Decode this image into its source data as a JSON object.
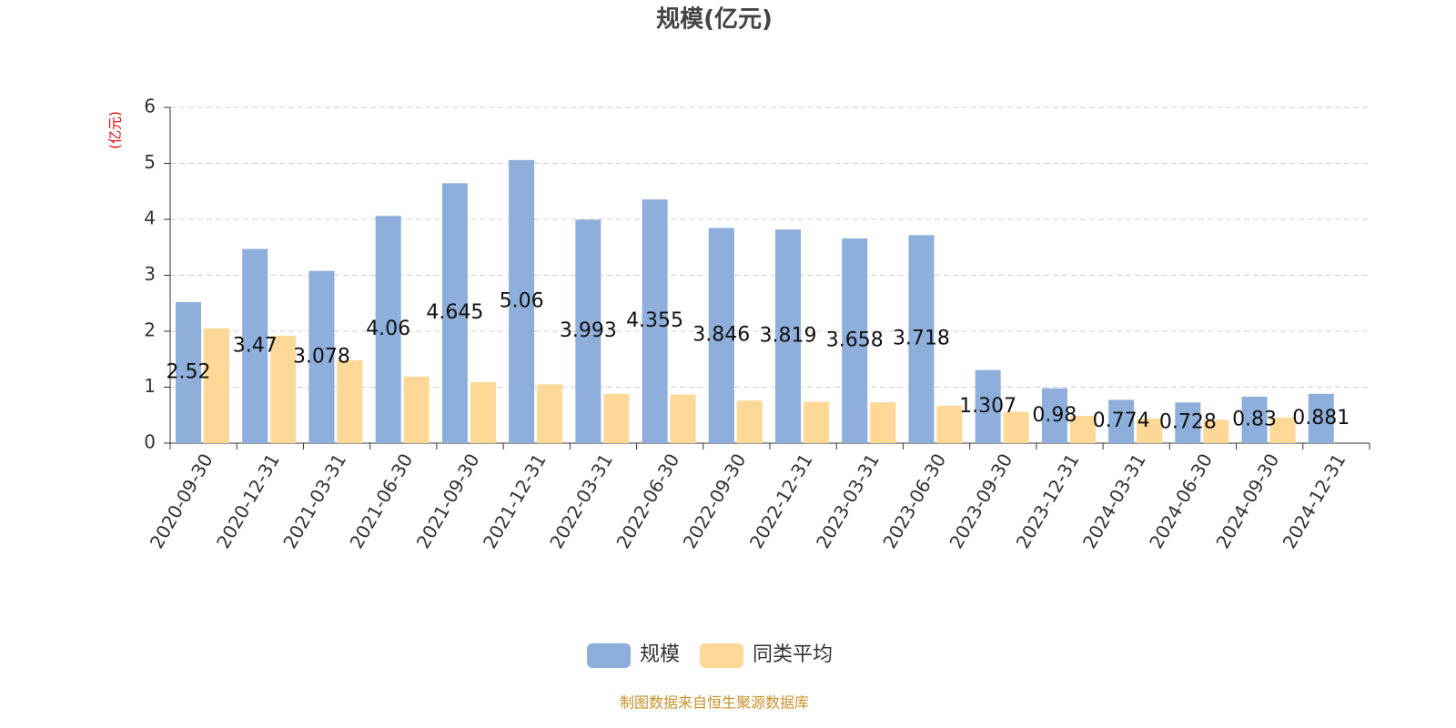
{
  "chart_data": {
    "type": "bar",
    "title": "规模(亿元)",
    "y_axis_label": "(亿元)",
    "categories": [
      "2020-09-30",
      "2020-12-31",
      "2021-03-31",
      "2021-06-30",
      "2021-09-30",
      "2021-12-31",
      "2022-03-31",
      "2022-06-30",
      "2022-09-30",
      "2022-12-31",
      "2023-03-31",
      "2023-06-30",
      "2023-09-30",
      "2023-12-31",
      "2024-03-31",
      "2024-06-30",
      "2024-09-30",
      "2024-12-31"
    ],
    "series": [
      {
        "name": "规模",
        "color": "#8eaedb",
        "values": [
          2.52,
          3.47,
          3.078,
          4.06,
          4.645,
          5.06,
          3.993,
          4.355,
          3.846,
          3.819,
          3.658,
          3.718,
          1.307,
          0.98,
          0.774,
          0.728,
          0.83,
          0.881
        ]
      },
      {
        "name": "同类平均",
        "color": "#fdd897",
        "values": [
          2.05,
          1.92,
          1.48,
          1.19,
          1.09,
          1.05,
          0.88,
          0.87,
          0.76,
          0.74,
          0.73,
          0.67,
          0.56,
          0.49,
          0.44,
          0.42,
          0.46,
          null
        ]
      }
    ],
    "ylim": [
      0,
      6
    ],
    "yticks": [
      0,
      1,
      2,
      3,
      4,
      5,
      6
    ],
    "grid": true,
    "source": "制图数据来自恒生聚源数据库"
  }
}
